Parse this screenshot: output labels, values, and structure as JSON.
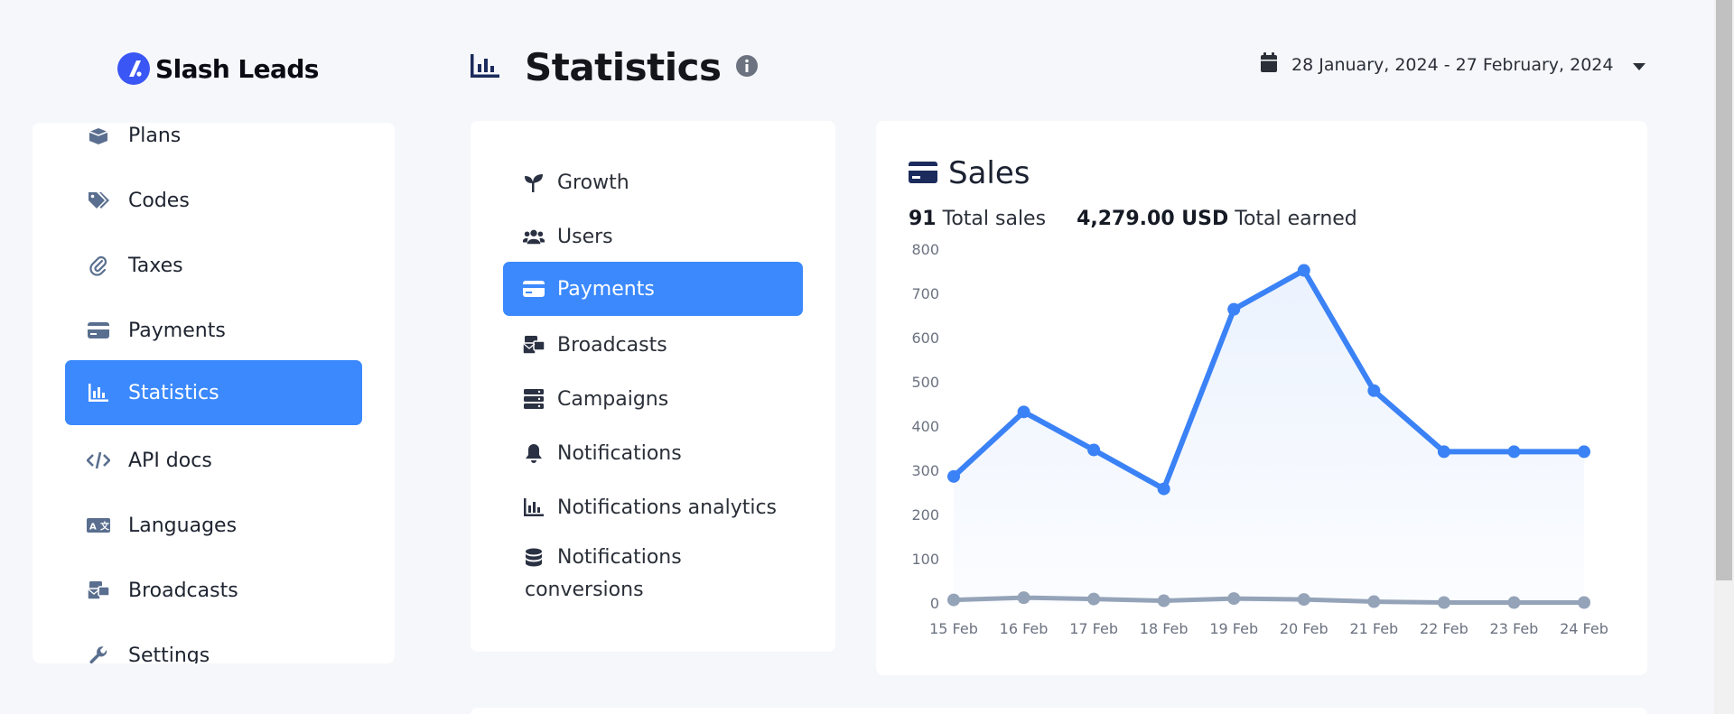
{
  "brand": {
    "name": "Slash Leads"
  },
  "header": {
    "title": "Statistics"
  },
  "date_range": {
    "label": "28 January, 2024 - 27 February, 2024"
  },
  "sidebar": {
    "items": [
      {
        "label": "Plans",
        "icon": "box-icon"
      },
      {
        "label": "Codes",
        "icon": "tags-icon"
      },
      {
        "label": "Taxes",
        "icon": "paperclip-icon"
      },
      {
        "label": "Payments",
        "icon": "credit-card-icon"
      },
      {
        "label": "Statistics",
        "icon": "chart-bar-icon",
        "active": true
      },
      {
        "label": "API docs",
        "icon": "code-icon"
      },
      {
        "label": "Languages",
        "icon": "language-icon"
      },
      {
        "label": "Broadcasts",
        "icon": "mail-bulk-icon"
      },
      {
        "label": "Settings",
        "icon": "wrench-icon"
      }
    ]
  },
  "submenu": {
    "items": [
      {
        "label": "Growth",
        "icon": "seedling-icon"
      },
      {
        "label": "Users",
        "icon": "users-icon"
      },
      {
        "label": "Payments",
        "icon": "credit-card-icon",
        "active": true
      },
      {
        "label": "Broadcasts",
        "icon": "mail-bulk-icon"
      },
      {
        "label": "Campaigns",
        "icon": "server-icon"
      },
      {
        "label": "Notifications",
        "icon": "bell-icon"
      },
      {
        "label": "Notifications analytics",
        "icon": "chart-bar-icon"
      },
      {
        "label": "Notifications conversions",
        "icon": "database-icon"
      }
    ]
  },
  "sales_card": {
    "title": "Sales",
    "total_sales_value": "91",
    "total_sales_label": "Total sales",
    "total_earned_value": "4,279.00 USD",
    "total_earned_label": "Total earned"
  },
  "chart_data": {
    "type": "line",
    "title": "Sales",
    "categories": [
      "15 Feb",
      "16 Feb",
      "17 Feb",
      "18 Feb",
      "19 Feb",
      "20 Feb",
      "21 Feb",
      "22 Feb",
      "23 Feb",
      "24 Feb"
    ],
    "ylim": [
      0,
      800
    ],
    "yticks": [
      0,
      100,
      200,
      300,
      400,
      500,
      600,
      700,
      800
    ],
    "series": [
      {
        "name": "Total earned",
        "color": "#3b82f6",
        "values": [
          286,
          432,
          346,
          258,
          664,
          752,
          480,
          342,
          342,
          342
        ]
      },
      {
        "name": "Total sales",
        "color": "#94a3b8",
        "values": [
          7,
          12,
          9,
          5,
          10,
          8,
          3,
          1,
          1,
          1
        ]
      }
    ],
    "xlabel": "",
    "ylabel": "",
    "grid": false
  },
  "colors": {
    "accent": "#3b89fd",
    "text": "#1e2430",
    "icon": "#5a6f8f"
  }
}
